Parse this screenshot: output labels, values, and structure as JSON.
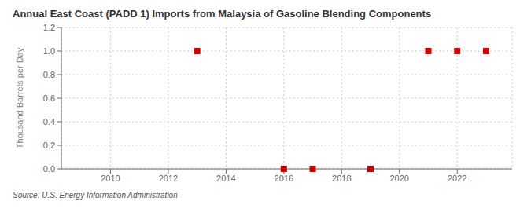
{
  "chart_data": {
    "type": "scatter",
    "title": "Annual East Coast (PADD 1) Imports from Malaysia of Gasoline Blending Components",
    "ylabel": "Thousand Barrels per Day",
    "source": "Source: U.S. Energy Information Administration",
    "x": [
      2013,
      2016,
      2017,
      2019,
      2021,
      2022,
      2023
    ],
    "values": [
      1.0,
      0.0,
      0.0,
      0.0,
      1.0,
      1.0,
      1.0
    ],
    "color": "#cc0000",
    "marker": "square",
    "xlim": [
      2008.3,
      2023.9
    ],
    "ylim": [
      0.0,
      1.2
    ],
    "xticks": [
      2010,
      2012,
      2014,
      2016,
      2018,
      2020,
      2022
    ],
    "yticks": [
      {
        "value": 0.0,
        "label": "0.0"
      },
      0.2,
      0.4,
      0.6,
      0.8,
      {
        "value": 1.0,
        "label": "1.0"
      },
      1.2
    ],
    "grid": true
  }
}
